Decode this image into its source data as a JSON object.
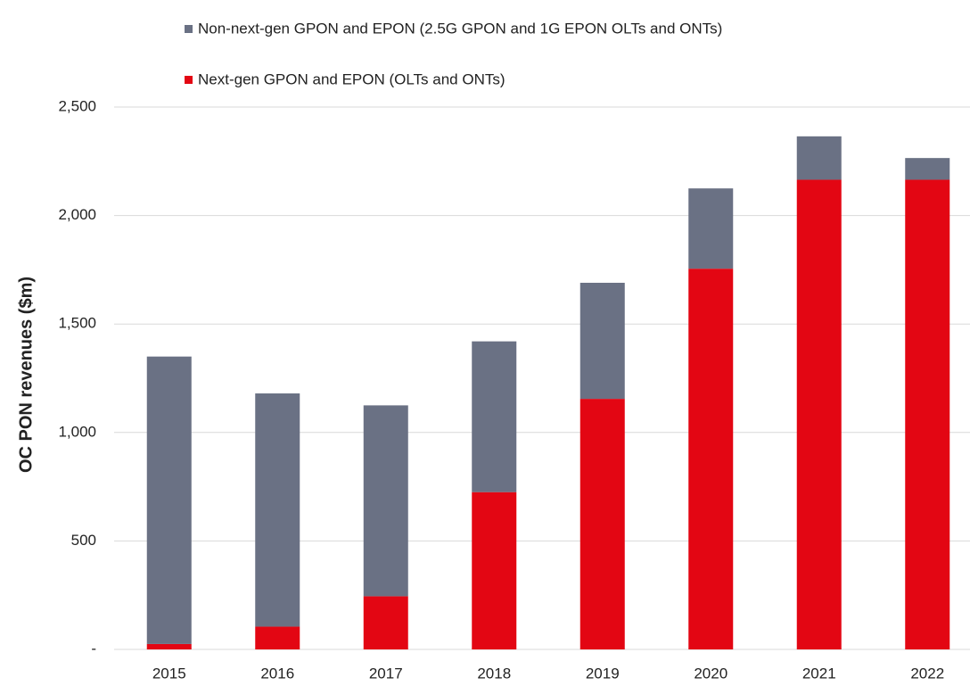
{
  "chart_data": {
    "type": "bar",
    "stacked": true,
    "y_label": "OC PON revenues ($m)",
    "categories": [
      "2015",
      "2016",
      "2017",
      "2018",
      "2019",
      "2020",
      "2021",
      "2022"
    ],
    "series": [
      {
        "name": "Non-next-gen GPON and EPON (2.5G GPON and 1G EPON OLTs and ONTs)",
        "color": "#6a7184",
        "values": [
          1325,
          1075,
          880,
          695,
          535,
          370,
          200,
          100
        ]
      },
      {
        "name": "Next-gen GPON and EPON (OLTs and ONTs)",
        "color": "#e30613",
        "values": [
          25,
          105,
          245,
          725,
          1155,
          1755,
          2165,
          2165
        ]
      }
    ],
    "ylim": [
      0,
      2500
    ],
    "yticks": [
      {
        "value": 0,
        "label": "-"
      },
      500,
      {
        "value": 1000,
        "label": "1,000"
      },
      {
        "value": 1500,
        "label": "1,500"
      },
      {
        "value": 2000,
        "label": "2,000"
      },
      {
        "value": 2500,
        "label": "2,500"
      }
    ],
    "grid": true,
    "legend": "top"
  }
}
